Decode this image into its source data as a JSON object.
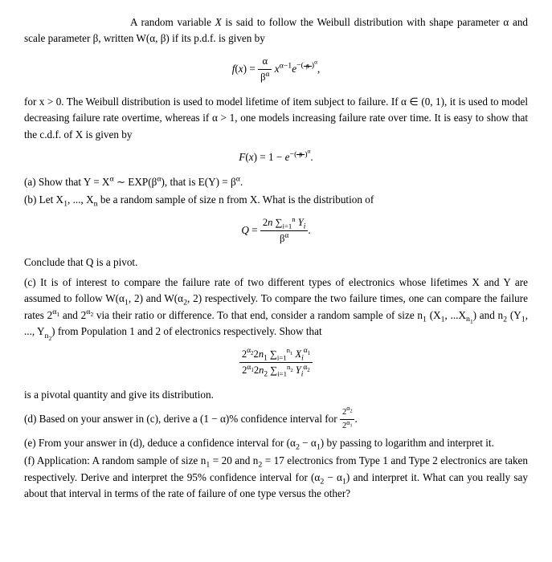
{
  "intro1_lead": "A random variable ",
  "intro1_rest": " is said to follow the Weibull distribution with shape parameter α and scale parameter β, written W(α, β) if its p.d.f. is given by",
  "eq1_html": "<span class='math'>f</span>(<span class='math'>x</span>) = <span class='frac'><span class='num'>α</span><span class='den'>β<sup>α</sup></span></span> <span class='math'>x</span><sup>α−1</sup><span class='math'>e</span><sup>−(<span class='frac' style='font-size:0.8em'><span class='num'>x</span><span class='den'>β</span></span>)<sup>α</sup></sup>,",
  "para2": "for x > 0. The Weibull distribution is used to model lifetime of item subject to failure. If α ∈ (0, 1), it is used to model decreasing failure rate overtime, whereas if α > 1, one models increasing failure rate over time. It is easy to show that the c.d.f. of X is given by",
  "eq2_html": "<span class='math'>F</span>(<span class='math'>x</span>) = 1 − <span class='math'>e</span><sup>−(<span class='frac' style='font-size:0.8em'><span class='num'>x</span><span class='den'>β</span></span>)<sup>α</sup></sup>.",
  "item_a": "(a) Show that Y = X<sup>α</sup> ∼ EXP(β<sup>α</sup>), that is E(Y) = β<sup>α</sup>.",
  "item_b": "(b) Let X<sub>1</sub>, ..., X<sub>n</sub> be a random sample of size n from X. What is the distribution of",
  "eq3_html": "<span class='math'>Q</span> = <span class='frac'><span class='num'>2<span class='math'>n</span> ∑<sub style='font-size:0.7em'>i=1</sub><sup style='font-size:0.7em'>n</sup> <span class='math'>Y<sub>i</sub></span></span><span class='den'>β<sup>α</sup></span></span>.",
  "conclude": "Conclude that Q is a pivot.",
  "item_c": "(c) It is of interest to compare the failure rate of two different types of electronics whose lifetimes X and Y are assumed to follow W(α<sub>1</sub>, 2) and W(α<sub>2</sub>, 2) respectively. To compare the two failure times, one can compare the failure rates 2<sup>α<sub>1</sub></sup> and 2<sup>α<sub>2</sub></sup> via their ratio or difference. To that end, consider a random sample of size n<sub>1</sub> (X<sub>1</sub>, ...X<sub>n<sub>1</sub></sub>) and n<sub>2</sub> (Y<sub>1</sub>, ..., Y<sub>n<sub>2</sub></sub>) from Population 1 and 2 of electronics respectively. Show that",
  "eq4_html": "<span class='frac'><span class='num'>2<sup>α<sub>2</sub></sup>2<span class='math'>n</span><sub>1</sub> ∑<sub style='font-size:0.7em'>i=1</sub><sup style='font-size:0.7em'>n<sub>1</sub></sup> <span class='math'>X<sub>i</sub></span><sup>α<sub>1</sub></sup></span><span class='den'>2<sup>α<sub>1</sub></sup>2<span class='math'>n</span><sub>2</sub> ∑<sub style='font-size:0.7em'>i=1</sub><sup style='font-size:0.7em'>n<sub>2</sub></sup> <span class='math'>Y<sub>i</sub></span><sup>α<sub>2</sub></sup></span></span>",
  "pivotal": "is a pivotal quantity and give its distribution.",
  "item_d": "(d) Based on your answer in (c), derive a (1 − α)% confidence interval for <span class='frac' style='font-size:0.85em'><span class='num'>2<sup>α<sub>2</sub></sup></span><span class='den'>2<sup>α<sub>1</sub></sup></span></span>.",
  "item_e": "(e) From your answer in (d), deduce a confidence interval for (α<sub>2</sub> − α<sub>1</sub>) by passing to logarithm and interpret it.",
  "item_f": "(f) Application: A random sample of size n<sub>1</sub> = 20 and n<sub>2</sub> = 17 electronics from Type 1 and Type 2 electronics are taken respectively. Derive and interpret the 95% confidence interval for (α<sub>2</sub> − α<sub>1</sub>) and interpret it. What can you really say about that interval in terms of the rate of failure of one type versus the other?"
}
